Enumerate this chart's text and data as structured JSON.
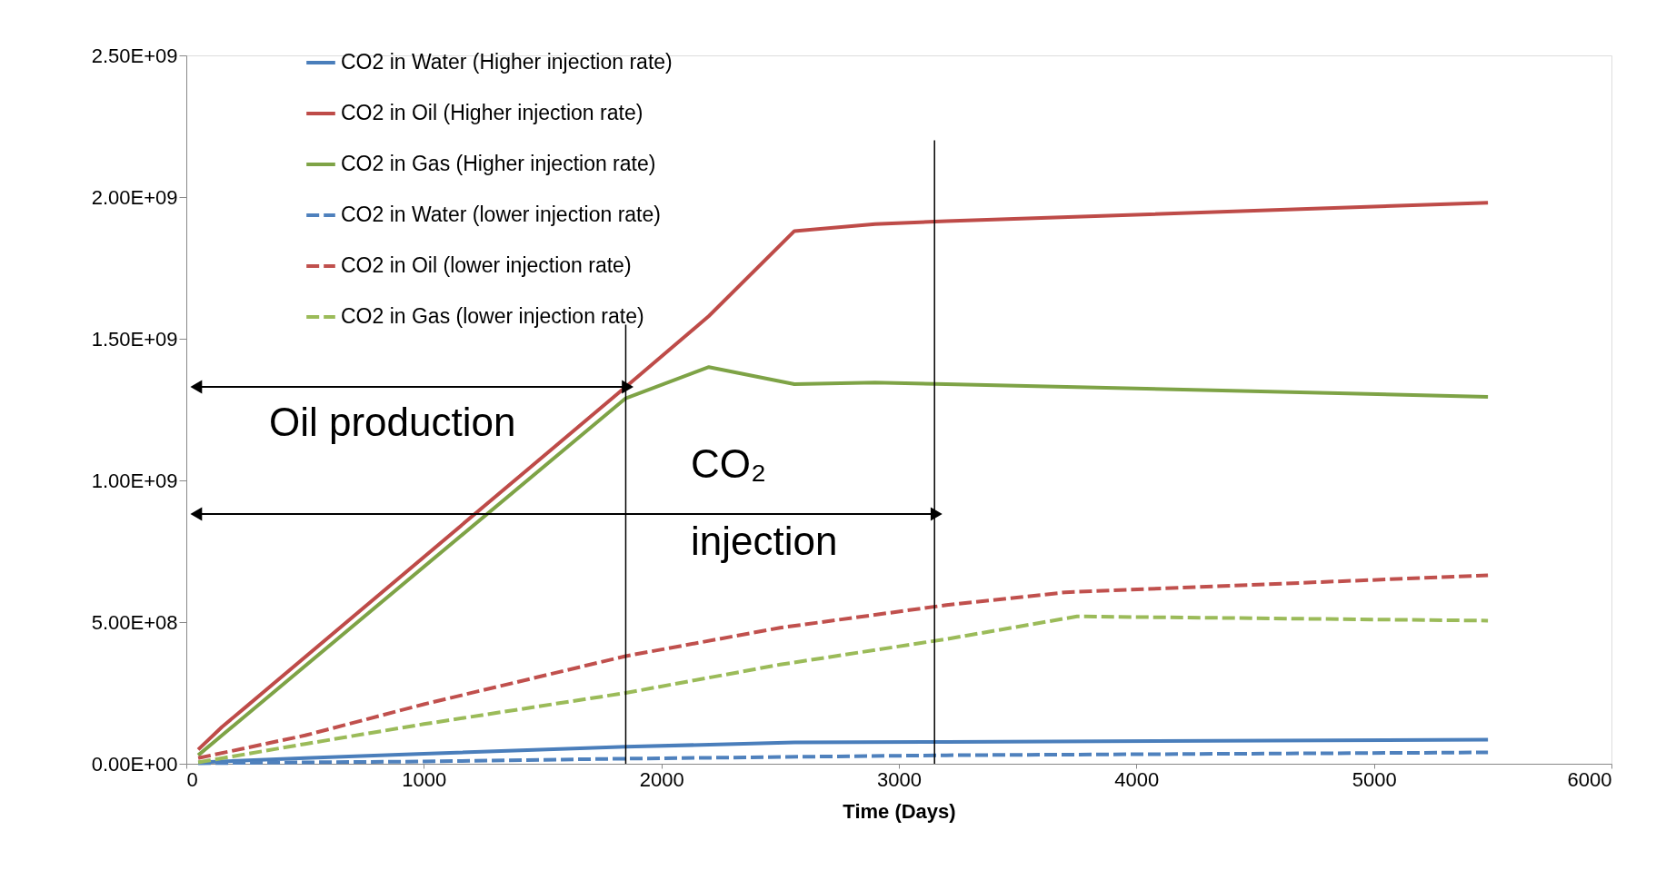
{
  "chart_data": {
    "type": "line",
    "xlabel": "Time (Days)",
    "xlim": [
      0,
      6000
    ],
    "xticks": [
      0,
      1000,
      2000,
      3000,
      4000,
      5000,
      6000
    ],
    "ylim": [
      0,
      2500000000
    ],
    "yticks": [
      {
        "value": 0,
        "label": "0.00E+00"
      },
      {
        "value": 500000000,
        "label": "5.00E+08"
      },
      {
        "value": 1000000000,
        "label": "1.00E+09"
      },
      {
        "value": 1500000000,
        "label": "1.50E+09"
      },
      {
        "value": 2000000000,
        "label": "2.00E+09"
      },
      {
        "value": 2500000000,
        "label": "2.50E+09"
      }
    ],
    "grid": false,
    "legend": "top left",
    "marker": "none",
    "series": [
      {
        "name": "CO2 in Water (Higher injection rate)",
        "color": "#4a7ebb",
        "line_style": "solid",
        "x": [
          50,
          500,
          1000,
          1850,
          2560,
          3200,
          5480
        ],
        "values": [
          5000000,
          20000000,
          35000000,
          60000000,
          75000000,
          77000000,
          85000000
        ]
      },
      {
        "name": "CO2 in Oil (Higher injection rate)",
        "color": "#be4b48",
        "line_style": "solid",
        "x": [
          50,
          150,
          250,
          1850,
          2200,
          2560,
          2900,
          3200,
          5480
        ],
        "values": [
          50000000,
          130000000,
          200000000,
          1330000000,
          1580000000,
          1880000000,
          1905000000,
          1915000000,
          1980000000
        ]
      },
      {
        "name": "CO2 in Gas (Higher injection rate)",
        "color": "#7ea346",
        "line_style": "solid",
        "x": [
          50,
          150,
          250,
          1850,
          2200,
          2560,
          2900,
          3200,
          5480
        ],
        "values": [
          30000000,
          100000000,
          170000000,
          1290000000,
          1400000000,
          1340000000,
          1345000000,
          1340000000,
          1295000000
        ]
      },
      {
        "name": "CO2 in Water (lower injection rate)",
        "color": "#4f81bd",
        "line_style": "dashed",
        "x": [
          50,
          1000,
          1850,
          3200,
          5480
        ],
        "values": [
          2000000,
          8000000,
          18000000,
          30000000,
          40000000
        ]
      },
      {
        "name": "CO2 in Oil (lower injection rate)",
        "color": "#c0504d",
        "line_style": "dashed",
        "x": [
          50,
          500,
          1000,
          1850,
          2500,
          3200,
          3700,
          5480
        ],
        "values": [
          20000000,
          100000000,
          210000000,
          380000000,
          480000000,
          560000000,
          605000000,
          665000000
        ]
      },
      {
        "name": "CO2 in Gas (lower injection rate)",
        "color": "#9bbb59",
        "line_style": "dashed",
        "x": [
          50,
          500,
          1000,
          1850,
          2500,
          3200,
          3750,
          5480
        ],
        "values": [
          5000000,
          70000000,
          140000000,
          250000000,
          350000000,
          440000000,
          520000000,
          505000000
        ]
      }
    ],
    "ref_lines": [
      {
        "axis": "x",
        "value": 1850,
        "color": "#000000",
        "line_style": "solid"
      },
      {
        "axis": "x",
        "value": 3150,
        "color": "#000000",
        "line_style": "solid"
      }
    ],
    "annotations": [
      "Oil production",
      "CO₂ injection"
    ]
  }
}
